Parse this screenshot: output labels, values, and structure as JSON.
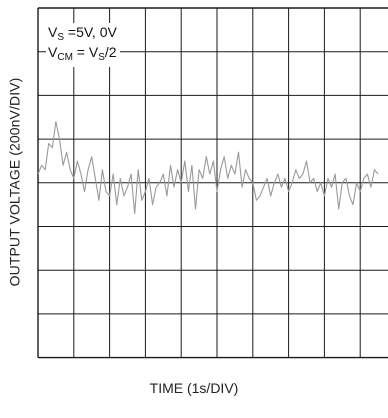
{
  "chart_data": {
    "type": "line",
    "title": "",
    "xlabel": "TIME (1s/DIV)",
    "ylabel": "OUTPUT VOLTAGE (200nV/DIV)",
    "x_divisions": 10,
    "y_divisions": 8,
    "visible_x_divisions": 9.5,
    "xlim": [
      0,
      10
    ],
    "ylim": [
      -4,
      4
    ],
    "x_unit_per_div": "1s",
    "y_unit_per_div": "200nV",
    "grid": true,
    "trace_color": "#9a9a9a",
    "grid_color": "#1a1a1a",
    "annotations": [
      {
        "main": "V",
        "sub": "S",
        "tail": " =5V, 0V"
      },
      {
        "main": "V",
        "sub": "CM",
        "tail": " = V",
        "sub2": "S",
        "tail2": "/2"
      }
    ],
    "series": [
      {
        "x": [
          0.0,
          0.1,
          0.2,
          0.3,
          0.4,
          0.5,
          0.6,
          0.7,
          0.8,
          0.9,
          1.0,
          1.1,
          1.2,
          1.3,
          1.4,
          1.5,
          1.6,
          1.7,
          1.8,
          1.9,
          2.0,
          2.1,
          2.2,
          2.3,
          2.4,
          2.5,
          2.6,
          2.7,
          2.8,
          2.9,
          3.0,
          3.1,
          3.2,
          3.3,
          3.4,
          3.5,
          3.6,
          3.7,
          3.8,
          3.9,
          4.0,
          4.1,
          4.2,
          4.3,
          4.4,
          4.5,
          4.6,
          4.7,
          4.8,
          4.9,
          5.0,
          5.1,
          5.2,
          5.3,
          5.4,
          5.5,
          5.6,
          5.7,
          5.8,
          5.9,
          6.0,
          6.1,
          6.2,
          6.3,
          6.4,
          6.5,
          6.6,
          6.7,
          6.8,
          6.9,
          7.0,
          7.1,
          7.2,
          7.3,
          7.4,
          7.5,
          7.6,
          7.7,
          7.8,
          7.9,
          8.0,
          8.1,
          8.2,
          8.3,
          8.4,
          8.5,
          8.6,
          8.7,
          8.8,
          8.9,
          9.0,
          9.1,
          9.2,
          9.3,
          9.4,
          9.5
        ],
        "y": [
          0.2,
          0.4,
          0.3,
          0.9,
          0.8,
          1.4,
          1.0,
          0.4,
          0.7,
          0.3,
          0.1,
          0.5,
          0.2,
          -0.2,
          0.3,
          0.6,
          0.1,
          -0.4,
          0.3,
          -0.2,
          -0.3,
          0.2,
          -0.5,
          0.1,
          -0.3,
          -0.1,
          0.2,
          -0.7,
          0.3,
          -0.4,
          -0.2,
          0.1,
          -0.5,
          -0.1,
          0.0,
          0.2,
          -0.3,
          0.4,
          -0.1,
          0.3,
          0.0,
          0.5,
          -0.2,
          0.4,
          -0.6,
          0.3,
          0.1,
          0.6,
          0.2,
          0.5,
          -0.2,
          0.3,
          0.6,
          0.1,
          0.4,
          0.2,
          0.7,
          -0.1,
          0.3,
          0.1,
          0.0,
          -0.4,
          -0.3,
          -0.1,
          0.1,
          -0.3,
          0.0,
          0.2,
          -0.1,
          0.1,
          -0.2,
          0.0,
          0.3,
          0.1,
          0.2,
          0.5,
          0.0,
          0.1,
          -0.2,
          0.0,
          -0.3,
          0.1,
          -0.1,
          0.2,
          -0.6,
          0.0,
          0.1,
          -0.3,
          -0.5,
          0.0,
          -0.2,
          0.1,
          0.2,
          -0.1,
          0.3,
          0.2
        ]
      }
    ]
  }
}
